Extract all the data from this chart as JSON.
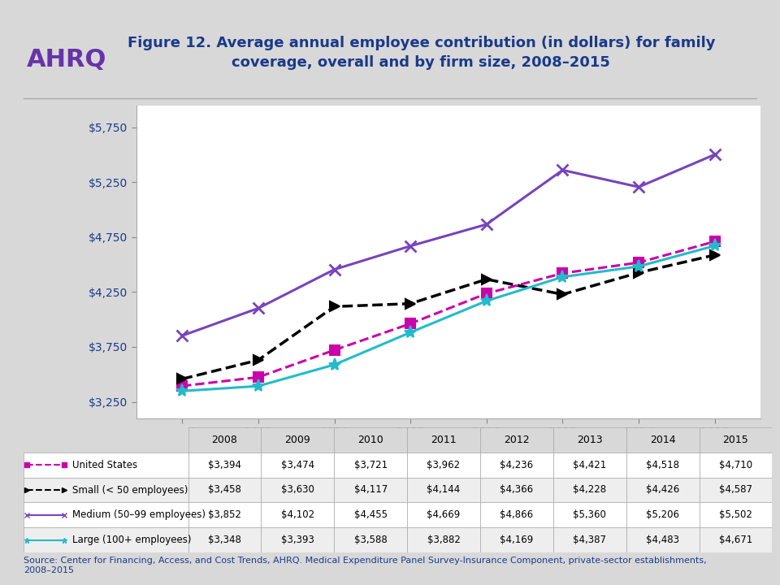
{
  "title": "Figure 12. Average annual employee contribution (in dollars) for family\ncoverage, overall and by firm size, 2008–2015",
  "years": [
    2008,
    2009,
    2010,
    2011,
    2012,
    2013,
    2014,
    2015
  ],
  "series_order": [
    "United States",
    "Small (< 50 employees)",
    "Medium (50–99 employees)",
    "Large (100+ employees)"
  ],
  "series": {
    "United States": {
      "values": [
        3394,
        3474,
        3721,
        3962,
        4236,
        4421,
        4518,
        4710
      ],
      "color": "#CC00AA",
      "linestyle": "--",
      "marker": "s",
      "linewidth": 2.2,
      "markersize": 8
    },
    "Small (< 50 employees)": {
      "values": [
        3458,
        3630,
        4117,
        4144,
        4366,
        4228,
        4426,
        4587
      ],
      "color": "#000000",
      "linestyle": "--",
      "marker": ">",
      "linewidth": 2.5,
      "markersize": 9
    },
    "Medium (50–99 employees)": {
      "values": [
        3852,
        4102,
        4455,
        4669,
        4866,
        5360,
        5206,
        5502
      ],
      "color": "#7744BB",
      "linestyle": "-",
      "marker": "x",
      "linewidth": 2.2,
      "markersize": 10,
      "markeredgewidth": 2.0
    },
    "Large (100+ employees)": {
      "values": [
        3348,
        3393,
        3588,
        3882,
        4169,
        4387,
        4483,
        4671
      ],
      "color": "#22BBCC",
      "linestyle": "-",
      "marker": "*",
      "linewidth": 2.2,
      "markersize": 11
    }
  },
  "table_labels": [
    "United States",
    "Small (< 50 employees)",
    "Medium (50–99 employees)",
    "Large (100+ employees)"
  ],
  "table_values": [
    [
      3394,
      3474,
      3721,
      3962,
      4236,
      4421,
      4518,
      4710
    ],
    [
      3458,
      3630,
      4117,
      4144,
      4366,
      4228,
      4426,
      4587
    ],
    [
      3852,
      4102,
      4455,
      4669,
      4866,
      5360,
      5206,
      5502
    ],
    [
      3348,
      3393,
      3588,
      3882,
      4169,
      4387,
      4483,
      4671
    ]
  ],
  "ylim": [
    3100,
    5950
  ],
  "yticks": [
    3250,
    3750,
    4250,
    4750,
    5250,
    5750
  ],
  "bg_color": "#D8D8D8",
  "plot_area_color": "#FFFFFF",
  "title_color": "#1A3A8A",
  "tick_label_color": "#1A3A8A",
  "table_text_color": "#000000",
  "source_color": "#1A3A8A",
  "source_text": "Source: Center for Financing, Access, and Cost Trends, AHRQ. Medical Expenditure Panel Survey-Insurance Component, private-sector establishments,\n2008–2015",
  "separator_color": "#AAAAAA"
}
